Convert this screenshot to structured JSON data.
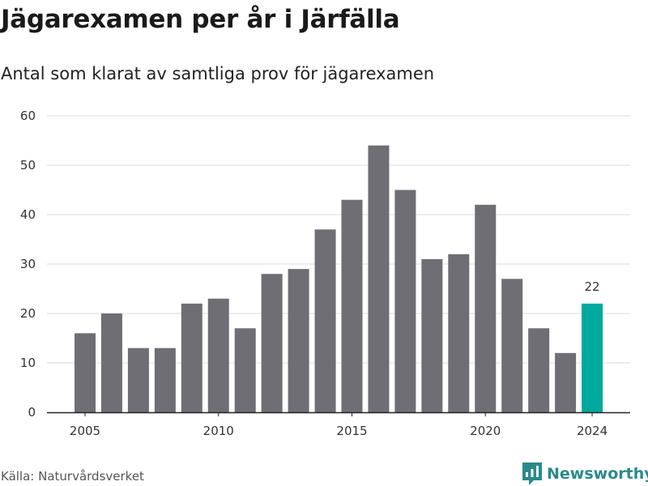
{
  "header": {
    "title": "Jägarexamen per år i Järfälla",
    "subtitle": "Antal som klarat av samtliga prov för jägarexamen"
  },
  "footer": {
    "source": "Källa: Naturvårdsverket",
    "brand": "Newsworthy"
  },
  "colors": {
    "bar": "#6f6e74",
    "highlight": "#00a99d",
    "grid": "#dddddd",
    "brand": "#2a8a8a"
  },
  "chart_data": {
    "type": "bar",
    "x": [
      2005,
      2006,
      2007,
      2008,
      2009,
      2010,
      2011,
      2012,
      2013,
      2014,
      2015,
      2016,
      2017,
      2018,
      2019,
      2020,
      2021,
      2022,
      2023,
      2024
    ],
    "values": [
      16,
      20,
      13,
      13,
      22,
      23,
      17,
      28,
      29,
      37,
      43,
      54,
      45,
      31,
      32,
      42,
      27,
      17,
      12,
      22
    ],
    "xticks": [
      "2005",
      "2010",
      "2015",
      "2020",
      "2024"
    ],
    "yticks": [
      0,
      10,
      20,
      30,
      40,
      50,
      60
    ],
    "ylim": [
      0,
      60
    ],
    "highlight": {
      "x": 2024,
      "label": "22"
    },
    "grid": true,
    "xlabel": "",
    "ylabel": ""
  }
}
